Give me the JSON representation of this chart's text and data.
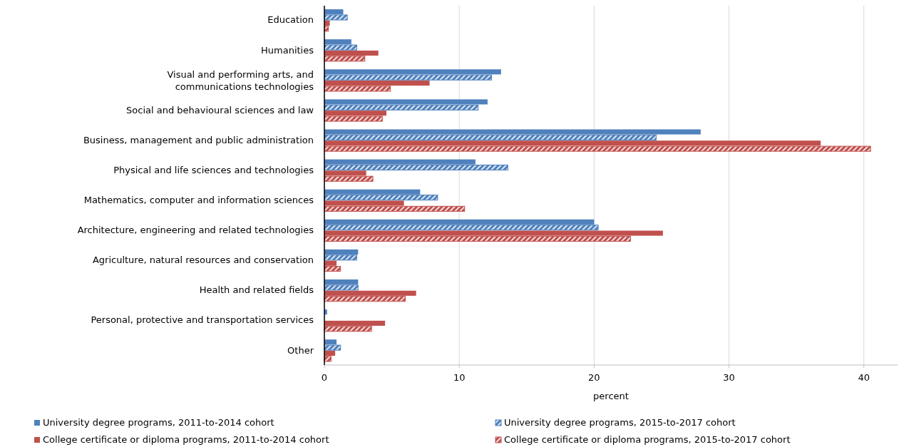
{
  "chart_data": {
    "type": "bar",
    "orientation": "horizontal",
    "xlabel": "percent",
    "categories": [
      "Education",
      "Humanities",
      "Visual and performing arts, and\ncommunications technologies",
      "Social and behavioural sciences and law",
      "Business, management and public administration",
      "Physical and life sciences and technologies",
      "Mathematics, computer and information sciences",
      "Architecture, engineering and related technologies",
      "Agriculture, natural resources and conservation",
      "Health and related fields",
      "Personal, protective and transportation services",
      "Other"
    ],
    "series": [
      {
        "name": "University degree programs, 2011-to-2014 cohort",
        "color": "#4f81bd",
        "values": [
          1.4,
          2.0,
          13.1,
          12.1,
          27.9,
          11.2,
          7.1,
          20.0,
          2.5,
          2.5,
          0.2,
          0.9
        ]
      },
      {
        "name": "University degree programs, 2015-to-2017 cohort",
        "color": "#4f81bd",
        "values": [
          1.7,
          2.4,
          12.4,
          11.4,
          24.6,
          13.6,
          8.4,
          20.3,
          2.4,
          2.5,
          null,
          1.2
        ]
      },
      {
        "name": "College certificate or diploma programs, 2011-to-2014 cohort",
        "color": "#c0504d",
        "values": [
          0.4,
          4.0,
          7.8,
          4.6,
          36.8,
          3.1,
          5.9,
          25.1,
          0.9,
          6.8,
          4.5,
          0.8
        ]
      },
      {
        "name": "College certificate or diploma programs, 2015-to-2017 cohort",
        "color": "#c0504d",
        "values": [
          0.3,
          3.0,
          4.9,
          4.3,
          40.5,
          3.6,
          10.4,
          22.7,
          1.2,
          6.0,
          3.5,
          0.5
        ]
      }
    ],
    "xlim": [
      0,
      42.5
    ],
    "xticks": [
      0,
      10,
      20,
      30,
      40
    ],
    "grid": "x",
    "legend": "bottom"
  }
}
